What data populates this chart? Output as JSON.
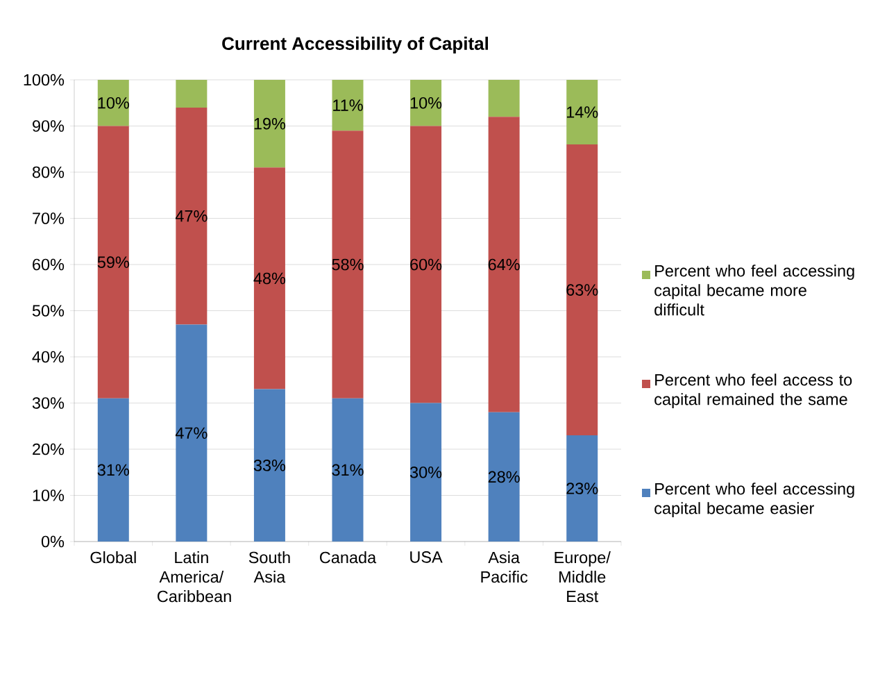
{
  "chart_data": {
    "type": "bar",
    "title": "Current Accessibility of Capital",
    "categories": [
      "Global",
      "Latin America/ Caribbean",
      "South Asia",
      "Canada",
      "USA",
      "Asia Pacific",
      "Europe/ Middle East"
    ],
    "series": [
      {
        "name": "Percent who feel accessing capital became easier",
        "color": "#4f81bd",
        "values": [
          31,
          47,
          33,
          31,
          30,
          28,
          23
        ],
        "value_labels": [
          "31%",
          "47%",
          "33%",
          "31%",
          "30%",
          "28%",
          "23%"
        ]
      },
      {
        "name": "Percent who feel access to capital remained the same",
        "color": "#c0504d",
        "values": [
          59,
          47,
          48,
          58,
          60,
          64,
          63
        ],
        "value_labels": [
          "59%",
          "47%",
          "48%",
          "58%",
          "60%",
          "64%",
          "63%"
        ]
      },
      {
        "name": "Percent who feel accessing capital became more difficult",
        "color": "#9bbb59",
        "values": [
          10,
          6,
          19,
          11,
          10,
          8,
          14
        ],
        "value_labels": [
          "10%",
          null,
          "19%",
          "11%",
          "10%",
          null,
          "14%"
        ]
      }
    ],
    "stacked": true,
    "ylim": [
      0,
      100
    ],
    "yticks": [
      {
        "value": 0,
        "label": "0%"
      },
      {
        "value": 10,
        "label": "10%"
      },
      {
        "value": 20,
        "label": "20%"
      },
      {
        "value": 30,
        "label": "30%"
      },
      {
        "value": 40,
        "label": "40%"
      },
      {
        "value": 50,
        "label": "50%"
      },
      {
        "value": 60,
        "label": "60%"
      },
      {
        "value": 70,
        "label": "70%"
      },
      {
        "value": 80,
        "label": "80%"
      },
      {
        "value": 90,
        "label": "90%"
      },
      {
        "value": 100,
        "label": "100%"
      }
    ],
    "grid": "y",
    "legend": "right"
  }
}
